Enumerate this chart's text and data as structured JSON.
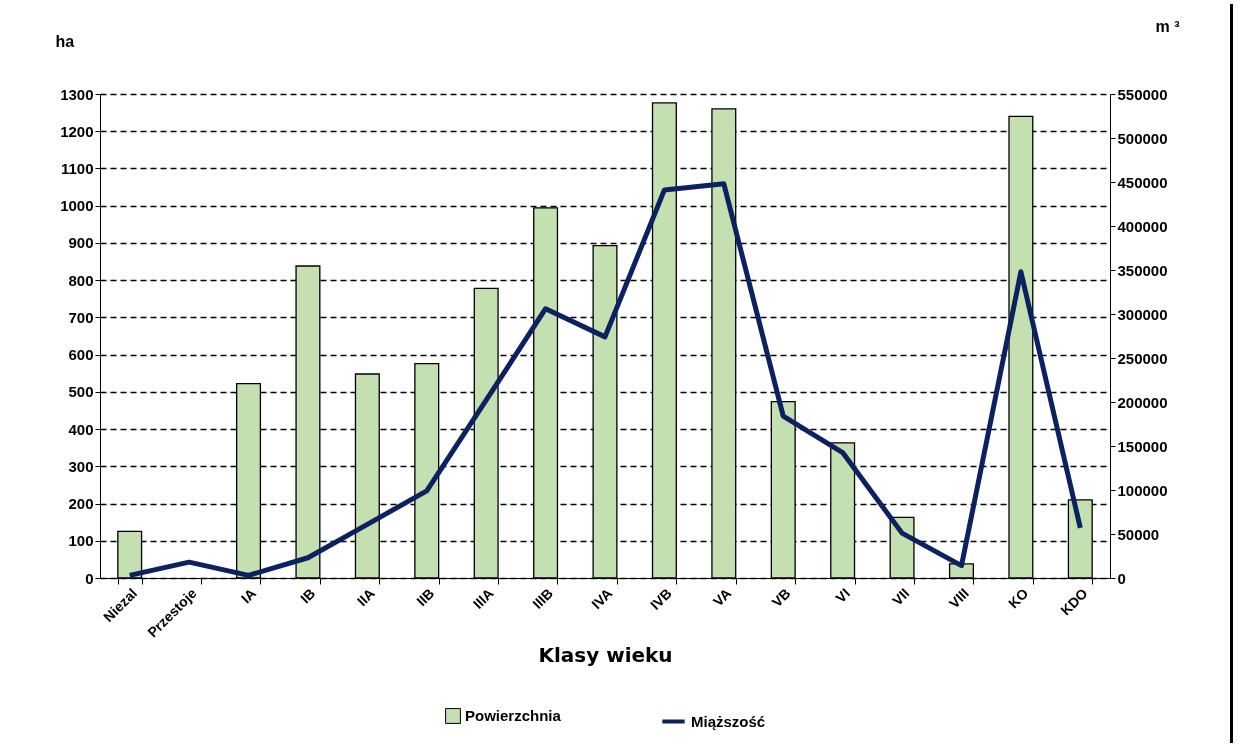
{
  "chart_data": {
    "type": "bar",
    "xlabel": "Klasy wieku",
    "ylabel": "ha",
    "y2label": "m ³",
    "categories": [
      "Niezal",
      "Przestoje",
      "IA",
      "IB",
      "IIA",
      "IIB",
      "IIIA",
      "IIIB",
      "IVA",
      "IVB",
      "VA",
      "VB",
      "VI",
      "VII",
      "VIII",
      "KO",
      "KDO"
    ],
    "series": [
      {
        "name": "Powierzchnia",
        "color": "#c4dfb0",
        "values": [
          125,
          null,
          522,
          838,
          548,
          576,
          778,
          994,
          893,
          1276,
          1260,
          474,
          363,
          163,
          38,
          1240,
          210
        ]
      },
      {
        "name": "Miąższość",
        "type": "line",
        "axis": "y2",
        "color": "#0b2161",
        "values": [
          3000,
          18000,
          3000,
          23000,
          61000,
          99000,
          202000,
          306000,
          274000,
          441000,
          448000,
          184000,
          142500,
          51000,
          14000,
          348000,
          57000
        ]
      }
    ],
    "ylim": [
      0,
      1300
    ],
    "yticks": [
      0,
      100,
      200,
      300,
      400,
      500,
      600,
      700,
      800,
      900,
      1000,
      1100,
      1200,
      1300
    ],
    "y2lim": [
      0,
      550000
    ],
    "y2ticks": [
      0,
      50000,
      100000,
      150000,
      200000,
      250000,
      300000,
      350000,
      400000,
      450000,
      500000,
      550000
    ],
    "grid": "y",
    "legend": "bottom",
    "line_style": "solid",
    "marker": "none"
  }
}
